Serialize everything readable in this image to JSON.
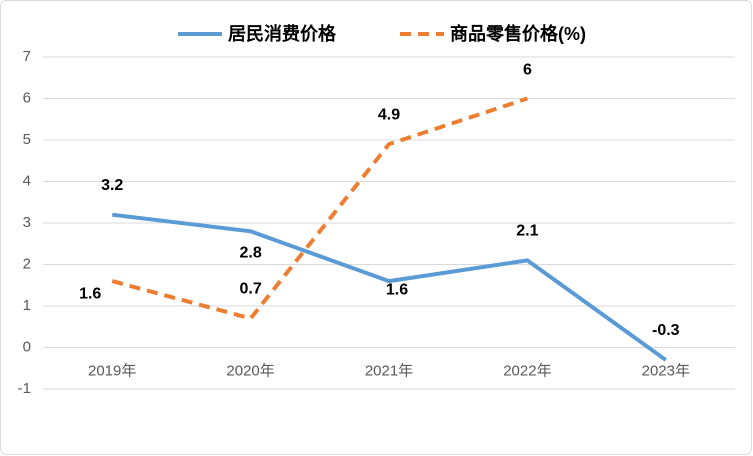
{
  "chart_data": {
    "type": "line",
    "categories": [
      "2019年",
      "2020年",
      "2021年",
      "2022年",
      "2023年"
    ],
    "series": [
      {
        "name": "居民消费价格",
        "color": "#5b9bd5",
        "dash": false,
        "values": [
          3.2,
          2.8,
          1.6,
          2.1,
          -0.3
        ]
      },
      {
        "name": "商品零售价格(%)",
        "color": "#ed7d31",
        "dash": true,
        "values": [
          1.6,
          0.7,
          4.9,
          6,
          null
        ]
      }
    ],
    "ylim": [
      -1,
      7
    ],
    "yticks": [
      -1,
      0,
      1,
      2,
      3,
      4,
      5,
      6,
      7
    ],
    "grid": true,
    "legend": "top"
  }
}
